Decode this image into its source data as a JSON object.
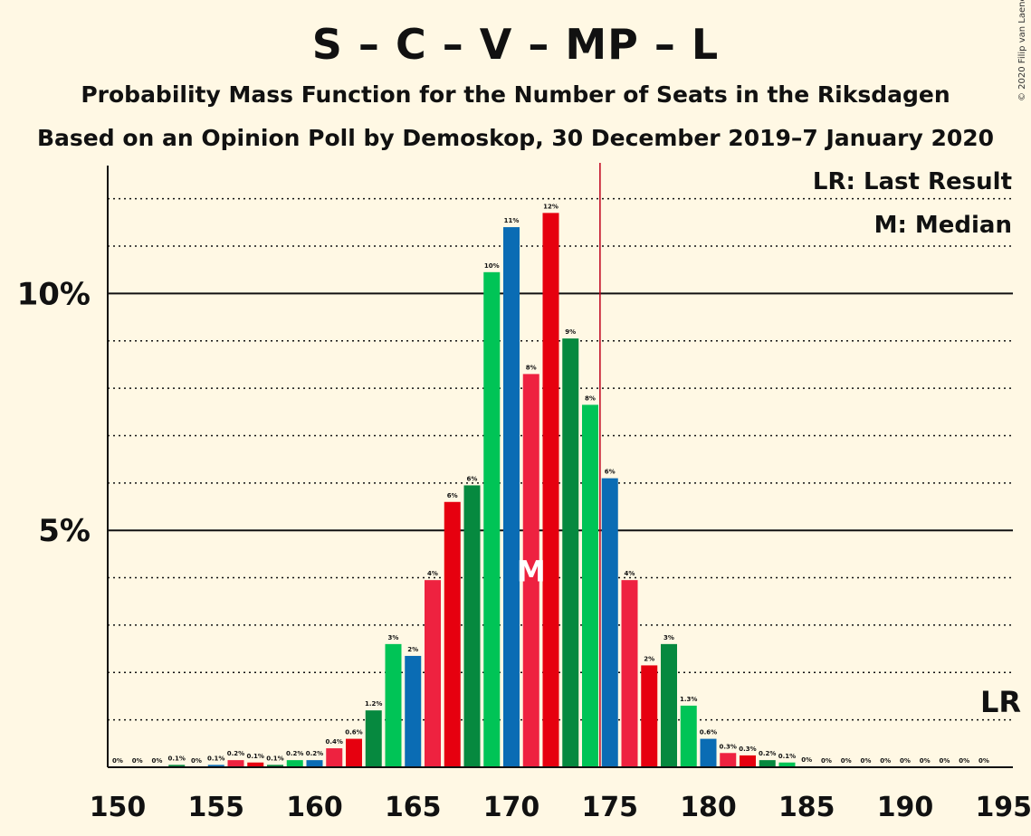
{
  "chart_data": {
    "type": "bar",
    "title": "S – C – V – MP – L",
    "subtitle": "Probability Mass Function for the Number of Seats in the Riksdagen",
    "subtitle2": "Based on an Opinion Poll by Demoskop, 30 December 2019–7 January 2020",
    "copyright": "© 2020 Filip van Laenen",
    "legend": {
      "last_result": "LR: Last Result",
      "median": "M: Median",
      "placement": "top-right"
    },
    "x_min": 150,
    "x_max": 195,
    "ylim": [
      0,
      12.7
    ],
    "y_ticks": [
      {
        "value": 5,
        "label": "5%"
      },
      {
        "value": 10,
        "label": "10%"
      }
    ],
    "x_ticks": [
      150,
      155,
      160,
      165,
      170,
      175,
      180,
      185,
      190,
      195
    ],
    "grid": true,
    "median_seat": 171,
    "median_label": "M",
    "last_result_seat": 175,
    "last_result_label": "LR",
    "colors": [
      "#0A6CB4",
      "#EE2240",
      "#E6000F",
      "#06893F",
      "#00C456"
    ],
    "seats": [
      150,
      151,
      152,
      153,
      154,
      155,
      156,
      157,
      158,
      159,
      160,
      161,
      162,
      163,
      164,
      165,
      166,
      167,
      168,
      169,
      170,
      171,
      172,
      173,
      174,
      175,
      176,
      177,
      178,
      179,
      180,
      181,
      182,
      183,
      184,
      185,
      186,
      187,
      188,
      189,
      190,
      191,
      192,
      193,
      194
    ],
    "values": [
      0,
      0,
      0,
      0.05,
      0,
      0.05,
      0.15,
      0.1,
      0.05,
      0.15,
      0.15,
      0.4,
      0.6,
      1.2,
      2.6,
      2.35,
      3.95,
      5.6,
      5.95,
      10.45,
      11.4,
      8.3,
      11.7,
      9.05,
      7.65,
      6.1,
      3.95,
      2.15,
      2.6,
      1.3,
      0.6,
      0.3,
      0.25,
      0.15,
      0.1,
      0.02,
      0,
      0,
      0,
      0,
      0,
      0,
      0,
      0,
      0
    ],
    "labels": [
      "0%",
      "0%",
      "0%",
      "0.1%",
      "0%",
      "0.1%",
      "0.2%",
      "0.1%",
      "0.1%",
      "0.2%",
      "0.2%",
      "0.4%",
      "0.6%",
      "1.2%",
      "3%",
      "2%",
      "4%",
      "6%",
      "6%",
      "10%",
      "11%",
      "8%",
      "12%",
      "9%",
      "8%",
      "6%",
      "4%",
      "2%",
      "3%",
      "1.3%",
      "0.6%",
      "0.3%",
      "0.3%",
      "0.2%",
      "0.1%",
      "0%",
      "0%",
      "0%",
      "0%",
      "0%",
      "0%",
      "0%",
      "0%",
      "0%",
      "0%"
    ]
  }
}
